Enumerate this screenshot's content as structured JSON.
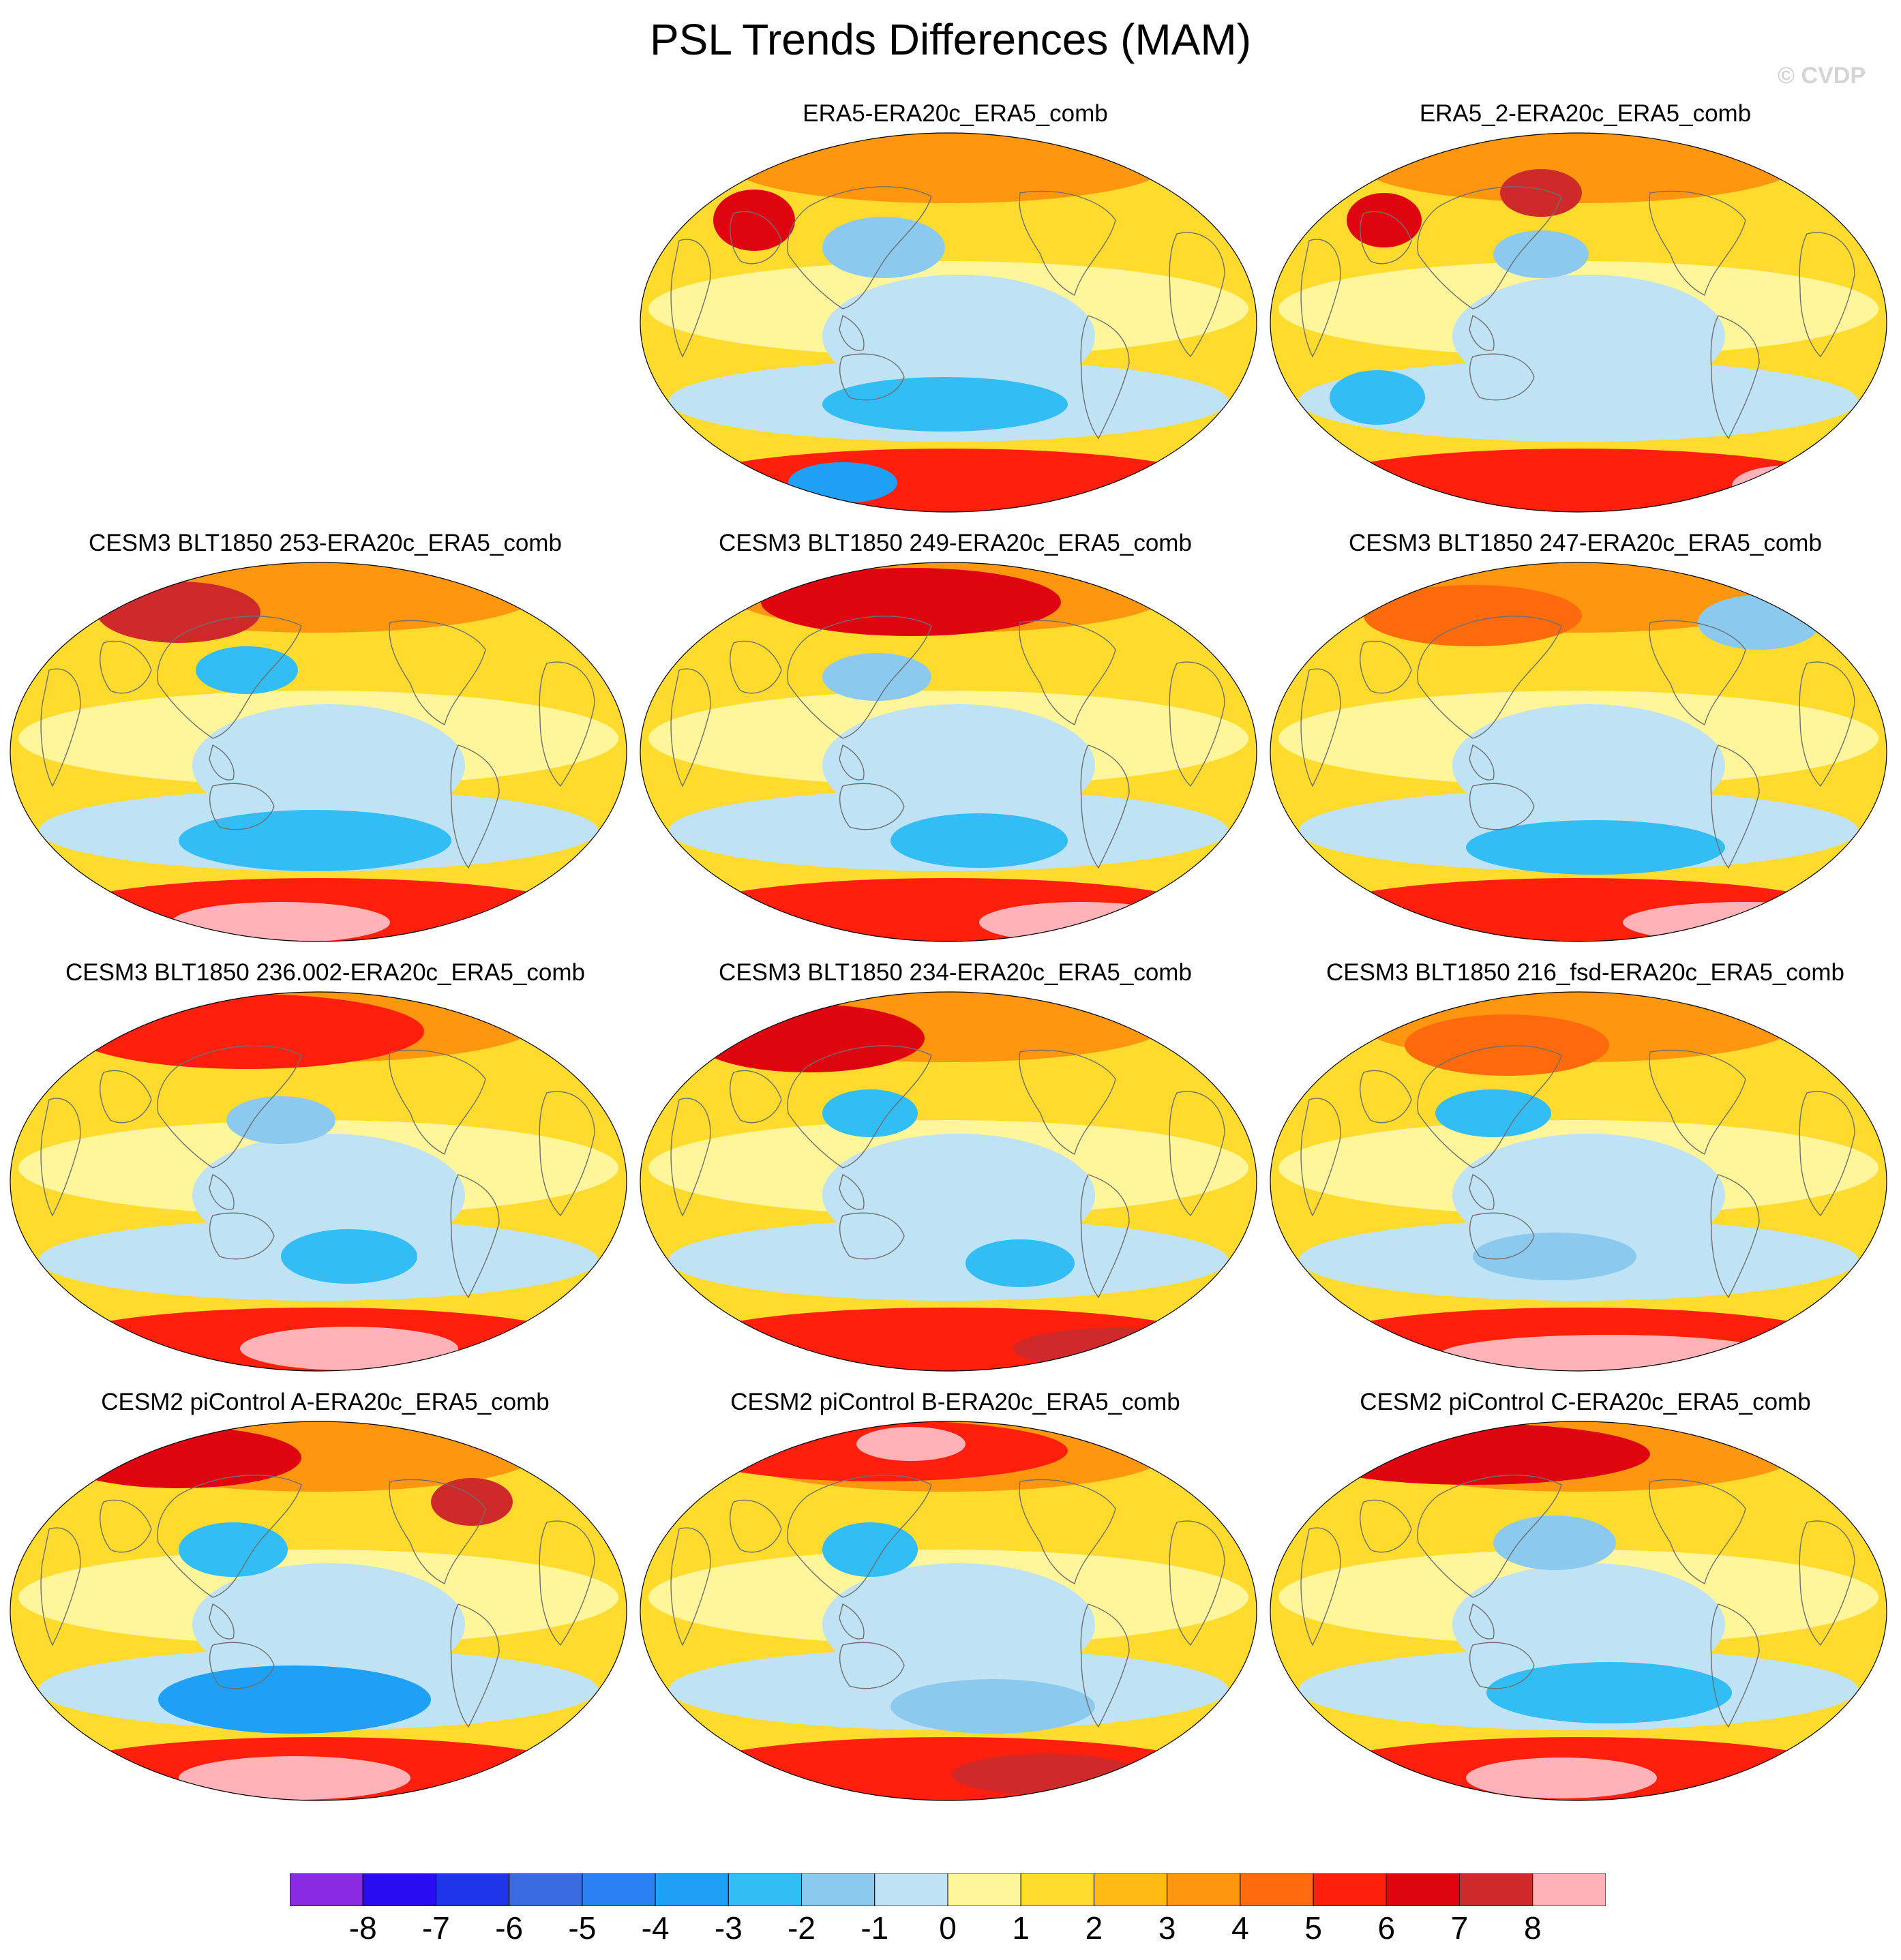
{
  "title": "PSL Trends Differences (MAM)",
  "credit": "© CVDP",
  "chart_data": {
    "type": "heatmap",
    "title": "PSL Trends Differences (MAM)",
    "projection": "Robinson (global, Pacific-centred)",
    "variable": "PSL trend difference",
    "panels": [
      {
        "title": "ERA5-ERA20c_ERA5_comb",
        "row": 0,
        "col": 1
      },
      {
        "title": "ERA5_2-ERA20c_ERA5_comb",
        "row": 0,
        "col": 2
      },
      {
        "title": "CESM3 BLT1850 253-ERA20c_ERA5_comb",
        "row": 1,
        "col": 0
      },
      {
        "title": "CESM3 BLT1850 249-ERA20c_ERA5_comb",
        "row": 1,
        "col": 1
      },
      {
        "title": "CESM3 BLT1850 247-ERA20c_ERA5_comb",
        "row": 1,
        "col": 2
      },
      {
        "title": "CESM3 BLT1850 236.002-ERA20c_ERA5_comb",
        "row": 2,
        "col": 0
      },
      {
        "title": "CESM3 BLT1850 234-ERA20c_ERA5_comb",
        "row": 2,
        "col": 1
      },
      {
        "title": "CESM3 BLT1850 216_fsd-ERA20c_ERA5_comb",
        "row": 2,
        "col": 2
      },
      {
        "title": "CESM2 piControl A-ERA20c_ERA5_comb",
        "row": 3,
        "col": 0
      },
      {
        "title": "CESM2 piControl B-ERA20c_ERA5_comb",
        "row": 3,
        "col": 1
      },
      {
        "title": "CESM2 piControl C-ERA20c_ERA5_comb",
        "row": 3,
        "col": 2
      }
    ],
    "colorbar": {
      "levels": [
        -8,
        -7,
        -6,
        -5,
        -4,
        -3,
        -2,
        -1,
        0,
        1,
        2,
        3,
        4,
        5,
        6,
        7,
        8
      ],
      "labels": [
        "-8",
        "-7",
        "-6",
        "-5",
        "-4",
        "-3",
        "-2",
        "-1",
        "0",
        "1",
        "2",
        "3",
        "4",
        "5",
        "6",
        "7",
        "8"
      ],
      "colors": [
        "#8a2be2",
        "#2a0cf2",
        "#1f36e8",
        "#3a6be0",
        "#2a80f0",
        "#1ea0f5",
        "#33bdf5",
        "#8cc9ee",
        "#bfe2f4",
        "#fff59b",
        "#ffdb2e",
        "#ffbb14",
        "#ff9610",
        "#ff6a0c",
        "#ff1f0c",
        "#df0510",
        "#cf2a2a",
        "#ffb3b8"
      ]
    }
  }
}
